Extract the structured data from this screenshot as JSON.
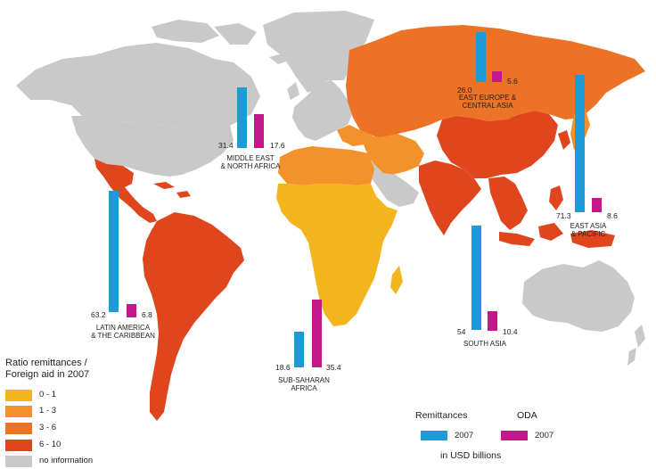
{
  "colors": {
    "remittances": "#1e9bd7",
    "oda": "#c2168a",
    "c01": "#f4b41d",
    "c13": "#f3922a",
    "c36": "#ec7326",
    "c610": "#e0461e",
    "noinfo": "#c9c9c9"
  },
  "regions": {
    "east_europe": {
      "label": "EAST EUROPE &\nCENTRAL ASIA",
      "remittances": "26.0",
      "oda": "5.6"
    },
    "middle_east": {
      "label": "MIDDLE EAST\n& NORTH AFRICA",
      "remittances": "31.4",
      "oda": "17.6"
    },
    "east_asia": {
      "label": "EAST ASIA\n& PACIFIC",
      "remittances": "71.3",
      "oda": "8.6"
    },
    "latin_america": {
      "label": "LATIN AMERICA\n& THE CARIBBEAN",
      "remittances": "63.2",
      "oda": "6.8"
    },
    "south_asia": {
      "label": "SOUTH ASIA",
      "remittances": "54",
      "oda": "10.4"
    },
    "sub_saharan": {
      "label": "SUB-SAHARAN\nAFRICA",
      "remittances": "18.6",
      "oda": "35.4"
    }
  },
  "legend": {
    "title": "Ratio remittances /\nForeign aid in 2007",
    "items": [
      {
        "label": "0 - 1",
        "color": "#f4b41d"
      },
      {
        "label": "1 - 3",
        "color": "#f3922a"
      },
      {
        "label": "3 - 6",
        "color": "#ec7326"
      },
      {
        "label": "6 - 10",
        "color": "#e0461e"
      },
      {
        "label": "no information",
        "color": "#c9c9c9"
      }
    ]
  },
  "key": {
    "remittances_head": "Remittances",
    "oda_head": "ODA",
    "remittances_year": "2007",
    "oda_year": "2007",
    "units": "in USD billions"
  }
}
